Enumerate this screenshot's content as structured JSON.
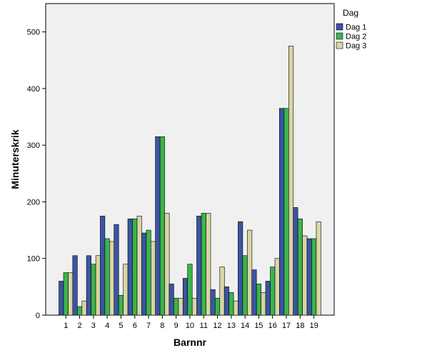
{
  "chart_data": {
    "type": "bar",
    "xlabel": "Barnnr",
    "ylabel": "Minuterskrik",
    "ylim": [
      0,
      550
    ],
    "yticks": [
      0,
      100,
      200,
      300,
      400,
      500
    ],
    "grid": false,
    "legend_position": "top-right-outside",
    "legend_title": "Dag",
    "categories": [
      "1",
      "2",
      "3",
      "4",
      "5",
      "6",
      "7",
      "8",
      "9",
      "10",
      "11",
      "12",
      "13",
      "14",
      "15",
      "16",
      "17",
      "18",
      "19"
    ],
    "series": [
      {
        "name": "Dag 1",
        "color": "#3b55a0",
        "values": [
          60,
          105,
          105,
          175,
          160,
          170,
          145,
          315,
          55,
          65,
          175,
          45,
          50,
          165,
          80,
          60,
          365,
          190,
          135
        ]
      },
      {
        "name": "Dag 2",
        "color": "#3cb44b",
        "values": [
          75,
          15,
          90,
          135,
          35,
          170,
          150,
          315,
          30,
          90,
          180,
          30,
          40,
          105,
          55,
          85,
          365,
          170,
          135
        ]
      },
      {
        "name": "Dag 3",
        "color": "#d8d5a6",
        "values": [
          75,
          25,
          105,
          130,
          90,
          175,
          130,
          180,
          30,
          30,
          180,
          85,
          25,
          150,
          40,
          100,
          475,
          140,
          165
        ]
      }
    ]
  }
}
